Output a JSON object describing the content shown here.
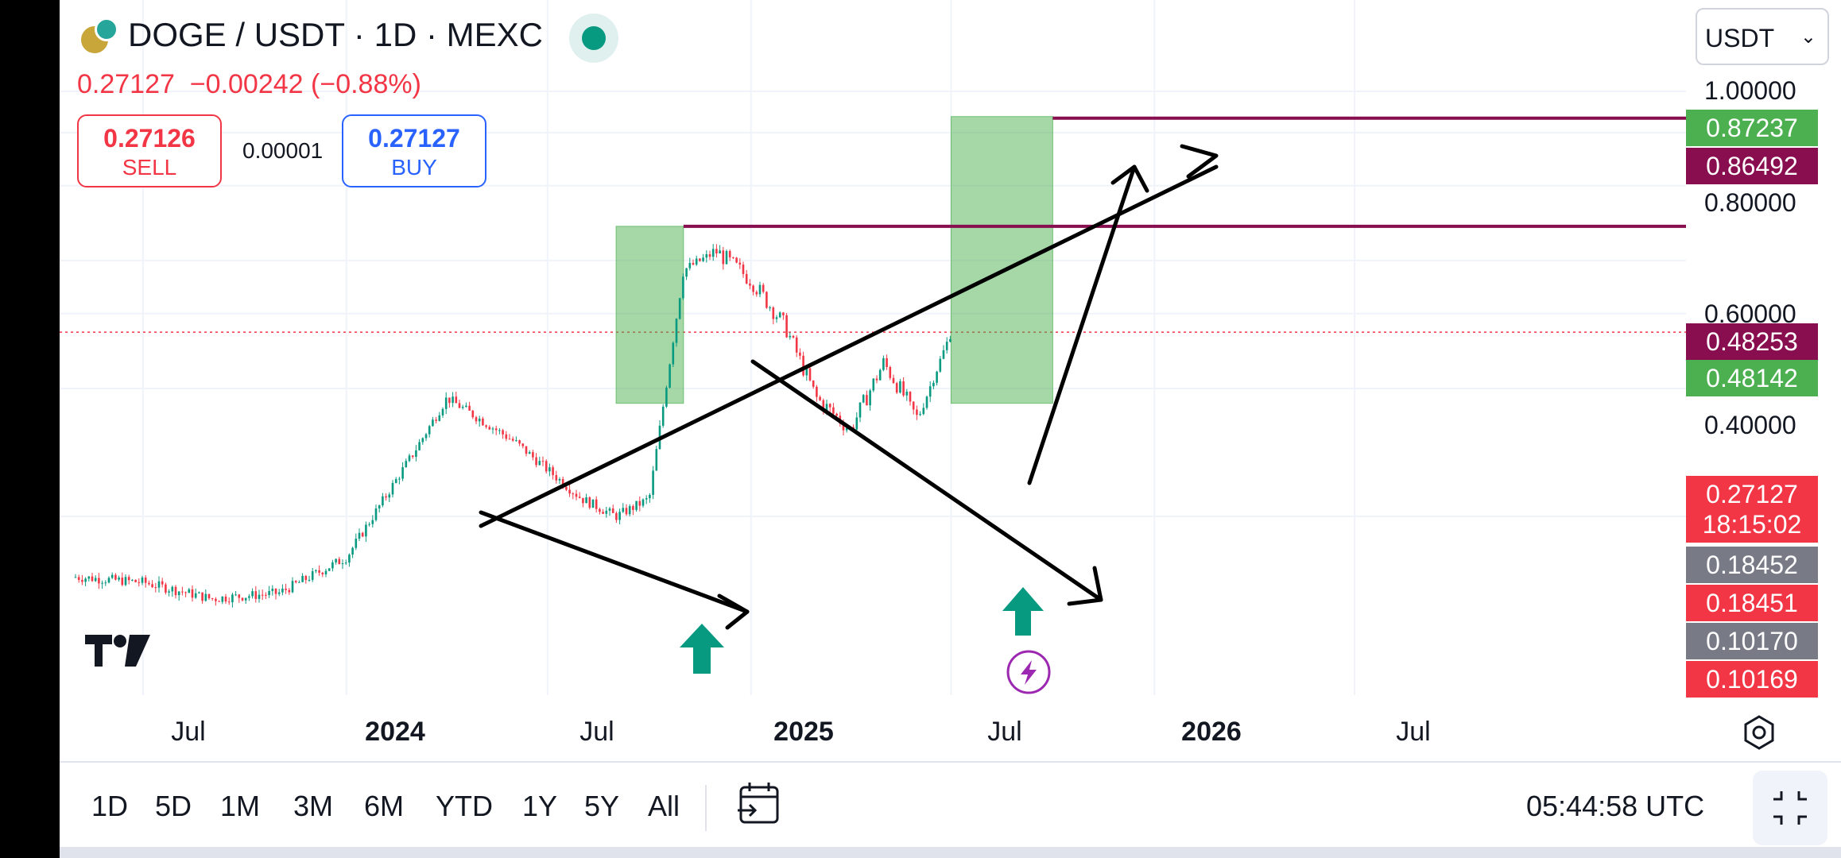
{
  "header": {
    "symbol_title": "DOGE / USDT · 1D · MEXC",
    "last_price": "0.27127",
    "change": "−0.00242 (−0.88%)",
    "sell_price": "0.27126",
    "sell_label": "SELL",
    "spread": "0.00001",
    "buy_price": "0.27127",
    "buy_label": "BUY",
    "currency": "USDT"
  },
  "price_axis": {
    "labels": [
      "1.00000",
      "0.80000",
      "0.60000",
      "0.40000"
    ],
    "badges": [
      {
        "value": "0.87237",
        "color": "#4caf50"
      },
      {
        "value": "0.86492",
        "color": "#880e4f"
      },
      {
        "value": "0.48253",
        "color": "#880e4f"
      },
      {
        "value": "0.48142",
        "color": "#4caf50"
      },
      {
        "value": "0.18452",
        "color": "#787b86"
      },
      {
        "value": "0.18451",
        "color": "#f23645"
      },
      {
        "value": "0.10170",
        "color": "#787b86"
      },
      {
        "value": "0.10169",
        "color": "#f23645"
      }
    ],
    "current_badge": {
      "value": "0.27127",
      "countdown": "18:15:02",
      "color": "#f23645"
    }
  },
  "time_axis": {
    "labels": [
      {
        "text": "Jul",
        "bold": false
      },
      {
        "text": "2024",
        "bold": true
      },
      {
        "text": "Jul",
        "bold": false
      },
      {
        "text": "2025",
        "bold": true
      },
      {
        "text": "Jul",
        "bold": false
      },
      {
        "text": "2026",
        "bold": true
      },
      {
        "text": "Jul",
        "bold": false
      }
    ]
  },
  "toolbar": {
    "ranges": [
      "1D",
      "5D",
      "1M",
      "3M",
      "6M",
      "YTD",
      "1Y",
      "5Y",
      "All"
    ],
    "clock": "05:44:58 UTC"
  },
  "chart_data": {
    "type": "line",
    "y_scale": "log",
    "ylim": [
      0.0685,
      1.12
    ],
    "x": [
      "2023-05",
      "2023-07",
      "2023-09",
      "2023-11",
      "2024-01",
      "2024-03",
      "2024-04",
      "2024-06",
      "2024-08",
      "2024-09",
      "2024-10",
      "2024-11",
      "2024-12",
      "2025-01",
      "2025-02",
      "2025-03",
      "2025-04",
      "2025-05",
      "2025-06",
      "2025-07"
    ],
    "series": [
      {
        "values": [
          0.072,
          0.07,
          0.064,
          0.066,
          0.08,
          0.14,
          0.19,
          0.15,
          0.11,
          0.1,
          0.11,
          0.38,
          0.42,
          0.36,
          0.28,
          0.19,
          0.16,
          0.23,
          0.17,
          0.27127
        ]
      }
    ],
    "current_price": 0.27127,
    "horizontal_levels": [
      0.86492,
      0.48142
    ],
    "projection_boxes": [
      {
        "x_start": "2024-09",
        "x_end": "2024-11",
        "y_low": 0.18451,
        "y_high": 0.48142
      },
      {
        "x_start": "2025-07",
        "x_end": "2025-10",
        "y_low": 0.18452,
        "y_high": 0.87237
      }
    ],
    "annotations": [
      "up-arrow 2024-09",
      "up-arrow 2025-07",
      "lightning 2025-07"
    ]
  }
}
